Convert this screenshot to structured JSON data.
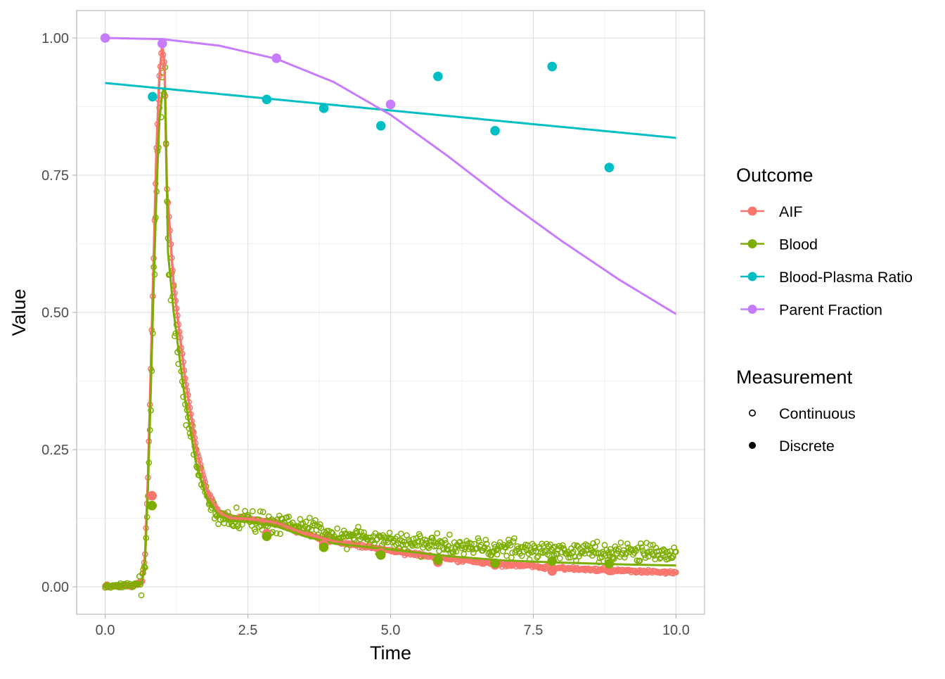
{
  "chart_data": {
    "type": "scatter",
    "title": "",
    "xlabel": "Time",
    "ylabel": "Value",
    "xlim": [
      -0.5,
      10.5
    ],
    "ylim": [
      -0.05,
      1.05
    ],
    "x_ticks": [
      0,
      2.5,
      5,
      7.5,
      10
    ],
    "x_tick_labels": [
      "0.0",
      "2.5",
      "5.0",
      "7.5",
      "10.0"
    ],
    "y_ticks": [
      0,
      0.25,
      0.5,
      0.75,
      1
    ],
    "y_tick_labels": [
      "0.00",
      "0.25",
      "0.50",
      "0.75",
      "1.00"
    ],
    "grid": true,
    "colors": {
      "AIF": "#F8766D",
      "Blood": "#7CAE00",
      "Blood-Plasma Ratio": "#00BFC4",
      "Parent Fraction": "#C77CFF"
    },
    "legend": {
      "placement": "right",
      "outcome_title": "Outcome",
      "outcome_entries": [
        "AIF",
        "Blood",
        "Blood-Plasma Ratio",
        "Parent Fraction"
      ],
      "measurement_title": "Measurement",
      "measurement_entries": [
        "Continuous",
        "Discrete"
      ]
    },
    "series": [
      {
        "name": "AIF",
        "measurement": "Discrete",
        "x": [
          0.82,
          2.83,
          3.83,
          4.83,
          5.83,
          6.83,
          7.83,
          8.83
        ],
        "y": [
          0.166,
          0.097,
          0.077,
          0.062,
          0.045,
          0.04,
          0.029,
          0.03
        ]
      },
      {
        "name": "Blood",
        "measurement": "Discrete",
        "x": [
          0.82,
          2.83,
          3.83,
          4.83,
          5.83,
          6.83,
          7.83,
          8.83
        ],
        "y": [
          0.148,
          0.092,
          0.072,
          0.058,
          0.049,
          0.043,
          0.047,
          0.042
        ]
      },
      {
        "name": "Blood-Plasma Ratio",
        "measurement": "Discrete",
        "x": [
          0.83,
          2.83,
          3.83,
          4.83,
          5.83,
          6.83,
          7.83,
          8.83
        ],
        "y": [
          0.893,
          0.888,
          0.872,
          0.84,
          0.93,
          0.831,
          0.948,
          0.764
        ]
      },
      {
        "name": "Parent Fraction",
        "measurement": "Discrete",
        "x": [
          0,
          1.0,
          3.0,
          5.0
        ],
        "y": [
          1.0,
          0.99,
          0.963,
          0.879
        ]
      },
      {
        "name": "AIF",
        "measurement": "Continuous",
        "generated": "sampled every ~0.0167 min from t=0 to 10 along the AIF curve (dense continuous sampler readings)"
      },
      {
        "name": "Blood",
        "measurement": "Continuous",
        "generated": "sampled every ~0.0167 min from t=0 to 10 along the Blood curve with measurement noise"
      }
    ],
    "fitted_lines": [
      {
        "name": "AIF",
        "x": [
          0,
          0.5,
          0.65,
          0.7,
          0.75,
          0.8,
          0.85,
          0.9,
          0.95,
          1.0,
          1.04,
          1.08,
          1.2,
          1.4,
          1.6,
          1.8,
          2.0,
          2.2,
          2.5,
          3.0,
          3.5,
          4.0,
          5.0,
          6.0,
          7.0,
          8.0,
          9.0,
          10.0
        ],
        "y": [
          0,
          0.003,
          0.01,
          0.06,
          0.2,
          0.4,
          0.6,
          0.8,
          0.93,
          0.99,
          0.95,
          0.73,
          0.55,
          0.38,
          0.25,
          0.17,
          0.135,
          0.125,
          0.124,
          0.117,
          0.097,
          0.083,
          0.066,
          0.051,
          0.041,
          0.034,
          0.029,
          0.026
        ]
      },
      {
        "name": "Blood",
        "x": [
          0,
          0.5,
          0.65,
          0.7,
          0.75,
          0.8,
          0.85,
          0.9,
          0.95,
          1.0,
          1.05,
          1.1,
          1.2,
          1.4,
          1.6,
          1.8,
          2.0,
          2.2,
          2.5,
          3.0,
          3.5,
          4.0,
          5.0,
          6.0,
          7.0,
          8.0,
          9.0,
          10.0
        ],
        "y": [
          0,
          0.003,
          0.01,
          0.05,
          0.18,
          0.36,
          0.55,
          0.72,
          0.85,
          0.9,
          0.91,
          0.61,
          0.5,
          0.34,
          0.22,
          0.155,
          0.13,
          0.12,
          0.118,
          0.11,
          0.092,
          0.079,
          0.068,
          0.056,
          0.048,
          0.044,
          0.041,
          0.039
        ]
      },
      {
        "name": "Blood-Plasma Ratio",
        "x": [
          0,
          10
        ],
        "y": [
          0.918,
          0.818
        ]
      },
      {
        "name": "Parent Fraction",
        "x": [
          0,
          1,
          2,
          3,
          4,
          5,
          6,
          7,
          8,
          9,
          10
        ],
        "y": [
          1.0,
          0.998,
          0.986,
          0.962,
          0.92,
          0.86,
          0.785,
          0.705,
          0.63,
          0.56,
          0.497
        ]
      }
    ]
  }
}
